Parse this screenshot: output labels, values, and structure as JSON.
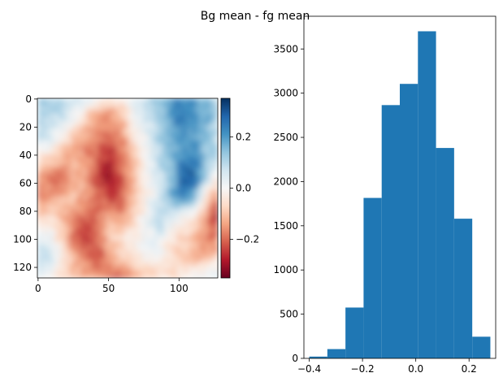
{
  "figure": {
    "title": "Bg mean - fg mean"
  },
  "chart_data": [
    {
      "type": "heatmap",
      "title": "",
      "xlabel": "",
      "ylabel": "",
      "x_range": [
        0,
        128
      ],
      "y_range": [
        0,
        128
      ],
      "y_inverted": true,
      "x_ticks": [
        0,
        50,
        100
      ],
      "y_ticks": [
        0,
        20,
        40,
        60,
        80,
        100,
        120
      ],
      "colormap": "RdBu",
      "colormap_stops": [
        "#67001f",
        "#b2182b",
        "#d6604d",
        "#f4a582",
        "#fddbc7",
        "#f7f7f7",
        "#d1e5f0",
        "#92c5de",
        "#4393c3",
        "#2166ac",
        "#053061"
      ],
      "value_range": [
        -0.35,
        0.35
      ],
      "colorbar": {
        "ticks": [
          0.2,
          0.0,
          -0.2
        ],
        "tick_labels": [
          "0.2",
          "0.0",
          "−0.2"
        ]
      },
      "value_grid_description_rows": [
        [
          0.15,
          0.12,
          0.1,
          0.08,
          0.05,
          0.0,
          -0.05,
          -0.02,
          0.05,
          0.1,
          0.15,
          0.2,
          0.22,
          0.2,
          0.15,
          0.1
        ],
        [
          0.12,
          0.1,
          0.08,
          0.0,
          -0.08,
          -0.15,
          -0.18,
          -0.12,
          0.0,
          0.05,
          0.1,
          0.18,
          0.25,
          0.22,
          0.18,
          0.12
        ],
        [
          0.08,
          0.05,
          -0.02,
          -0.1,
          -0.15,
          -0.18,
          -0.2,
          -0.15,
          -0.05,
          0.02,
          0.1,
          0.15,
          0.2,
          0.18,
          0.12,
          0.08
        ],
        [
          -0.05,
          -0.08,
          -0.12,
          -0.12,
          -0.15,
          -0.22,
          -0.28,
          -0.2,
          -0.1,
          0.0,
          0.08,
          0.15,
          0.22,
          0.25,
          0.15,
          0.1
        ],
        [
          -0.15,
          -0.18,
          -0.2,
          -0.12,
          -0.12,
          -0.25,
          -0.3,
          -0.22,
          -0.12,
          -0.02,
          0.05,
          0.12,
          0.28,
          0.3,
          0.1,
          -0.05
        ],
        [
          -0.18,
          -0.15,
          -0.1,
          -0.08,
          -0.15,
          -0.2,
          -0.25,
          -0.22,
          -0.1,
          -0.02,
          0.05,
          0.15,
          0.22,
          0.15,
          -0.05,
          -0.2
        ],
        [
          -0.1,
          -0.05,
          -0.1,
          -0.18,
          -0.22,
          -0.18,
          -0.12,
          -0.15,
          -0.08,
          0.0,
          0.1,
          0.05,
          0.0,
          -0.05,
          -0.15,
          -0.3
        ],
        [
          0.05,
          0.02,
          -0.08,
          -0.2,
          -0.25,
          -0.2,
          -0.1,
          -0.05,
          -0.02,
          0.02,
          0.05,
          -0.02,
          -0.08,
          -0.12,
          -0.15,
          -0.2
        ],
        [
          0.1,
          0.08,
          -0.02,
          -0.12,
          -0.2,
          -0.22,
          -0.15,
          -0.08,
          -0.05,
          -0.02,
          0.0,
          -0.05,
          -0.1,
          -0.12,
          -0.1,
          -0.08
        ],
        [
          0.05,
          0.0,
          -0.08,
          -0.1,
          -0.12,
          -0.18,
          -0.2,
          -0.22,
          -0.15,
          -0.1,
          -0.08,
          -0.05,
          -0.02,
          0.0,
          0.05,
          0.05
        ]
      ]
    },
    {
      "type": "bar",
      "subtype": "histogram",
      "title": "",
      "xlabel": "",
      "ylabel": "",
      "bin_edges": [
        -0.4,
        -0.332,
        -0.264,
        -0.196,
        -0.128,
        -0.06,
        0.008,
        0.076,
        0.144,
        0.212,
        0.28
      ],
      "values": [
        20,
        105,
        575,
        1815,
        2865,
        3105,
        3700,
        2380,
        1580,
        245
      ],
      "xlim": [
        -0.42,
        0.3
      ],
      "ylim": [
        0,
        3870
      ],
      "x_ticks": [
        -0.4,
        -0.2,
        0.0,
        0.2
      ],
      "x_tick_labels": [
        "−0.4",
        "−0.2",
        "0.0",
        "0.2"
      ],
      "y_ticks": [
        0,
        500,
        1000,
        1500,
        2000,
        2500,
        3000,
        3500
      ],
      "color": "#1f77b4"
    }
  ]
}
